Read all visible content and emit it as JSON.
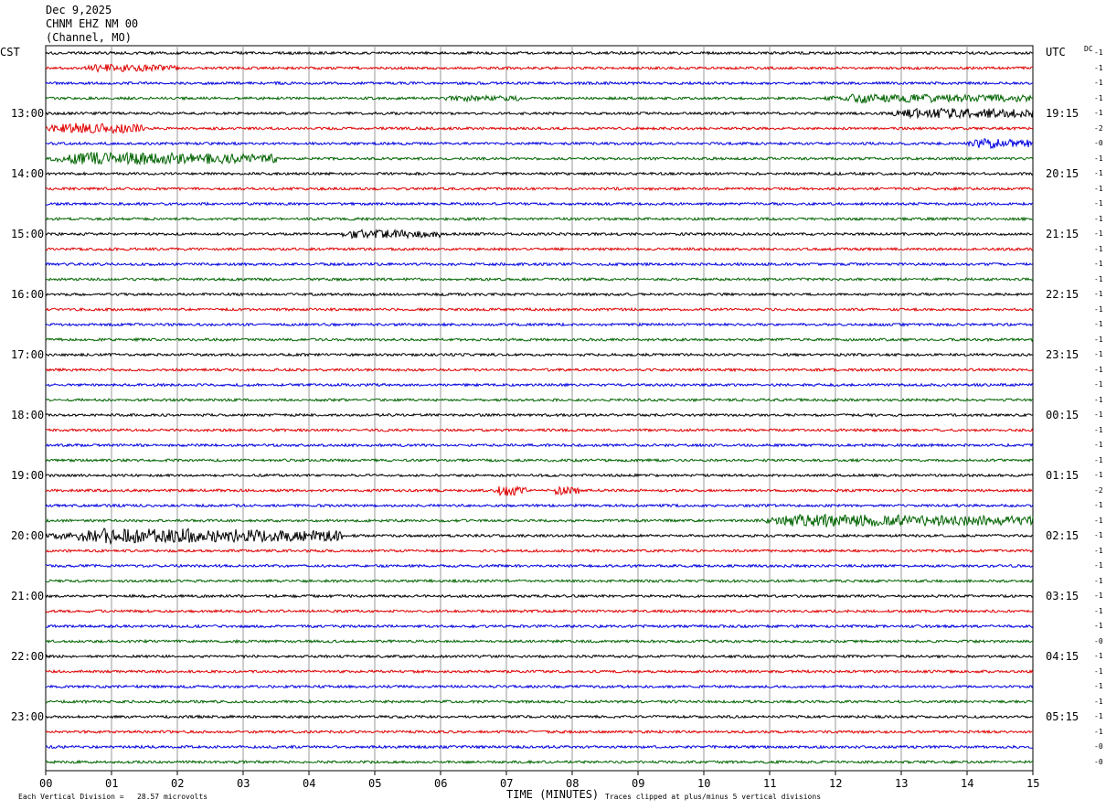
{
  "header": {
    "date": "Dec 9,2025",
    "station": "CHNM EHZ NM 00",
    "location": "(Channel, MO)"
  },
  "left_tz": "CST",
  "right_tz": "UTC",
  "dc_label": "DC",
  "chart_data": {
    "type": "line",
    "title": "",
    "xlabel": "TIME (MINUTES)",
    "ylabel": "",
    "x_ticks": [
      "00",
      "01",
      "02",
      "03",
      "04",
      "05",
      "06",
      "07",
      "08",
      "09",
      "10",
      "11",
      "12",
      "13",
      "14",
      "15"
    ],
    "xlim": [
      0,
      15
    ],
    "grid": true,
    "trace_colors": [
      "#000000",
      "#e00000",
      "#0000e0",
      "#006400"
    ],
    "left_hour_labels": [
      "13:00",
      "14:00",
      "15:00",
      "16:00",
      "17:00",
      "18:00",
      "19:00",
      "20:00",
      "21:00",
      "22:00",
      "23:00"
    ],
    "right_hour_labels": [
      "19:15",
      "20:15",
      "21:15",
      "22:15",
      "23:15",
      "00:15",
      "01:15",
      "02:15",
      "03:15",
      "04:15",
      "05:15"
    ],
    "dc_offsets": [
      "-1",
      "-1",
      "-1",
      "-1",
      "-1",
      "-2",
      "-0",
      "-1",
      "-1",
      "-1",
      "-1",
      "-1",
      "-1",
      "-1",
      "-1",
      "-1",
      "-1",
      "-1",
      "-1",
      "-1",
      "-1",
      "-1",
      "-1",
      "-1",
      "-1",
      "-1",
      "-1",
      "-1",
      "-1",
      "-2",
      "-1",
      "-1",
      "-1",
      "-1",
      "-1",
      "-1",
      "-1",
      "-1",
      "-1",
      "-0",
      "-1",
      "-1",
      "-1",
      "-1",
      "-1",
      "-1",
      "-0",
      "-0"
    ],
    "events": [
      {
        "trace": 1,
        "start": 0.55,
        "end": 2.0,
        "amp": 2.0
      },
      {
        "trace": 3,
        "start": 6.0,
        "end": 7.2,
        "amp": 1.4
      },
      {
        "trace": 3,
        "start": 11.8,
        "end": 15.0,
        "amp": 2.5
      },
      {
        "trace": 4,
        "start": 12.8,
        "end": 15.0,
        "amp": 3.5
      },
      {
        "trace": 5,
        "start": 0.0,
        "end": 1.5,
        "amp": 3.5
      },
      {
        "trace": 6,
        "start": 14.0,
        "end": 15.0,
        "amp": 3.0
      },
      {
        "trace": 7,
        "start": 0.0,
        "end": 3.5,
        "amp": 4.0
      },
      {
        "trace": 12,
        "start": 4.4,
        "end": 6.0,
        "amp": 2.5
      },
      {
        "trace": 29,
        "start": 6.8,
        "end": 7.3,
        "amp": 3.5
      },
      {
        "trace": 29,
        "start": 7.7,
        "end": 8.1,
        "amp": 2.8
      },
      {
        "trace": 31,
        "start": 10.8,
        "end": 15.0,
        "amp": 4.0
      },
      {
        "trace": 32,
        "start": 0.0,
        "end": 4.5,
        "amp": 5.0
      }
    ],
    "footer_left": "Each Vertical Division =   28.57 microvolts",
    "footer_right": "Traces clipped at plus/minus 5 vertical divisions"
  }
}
